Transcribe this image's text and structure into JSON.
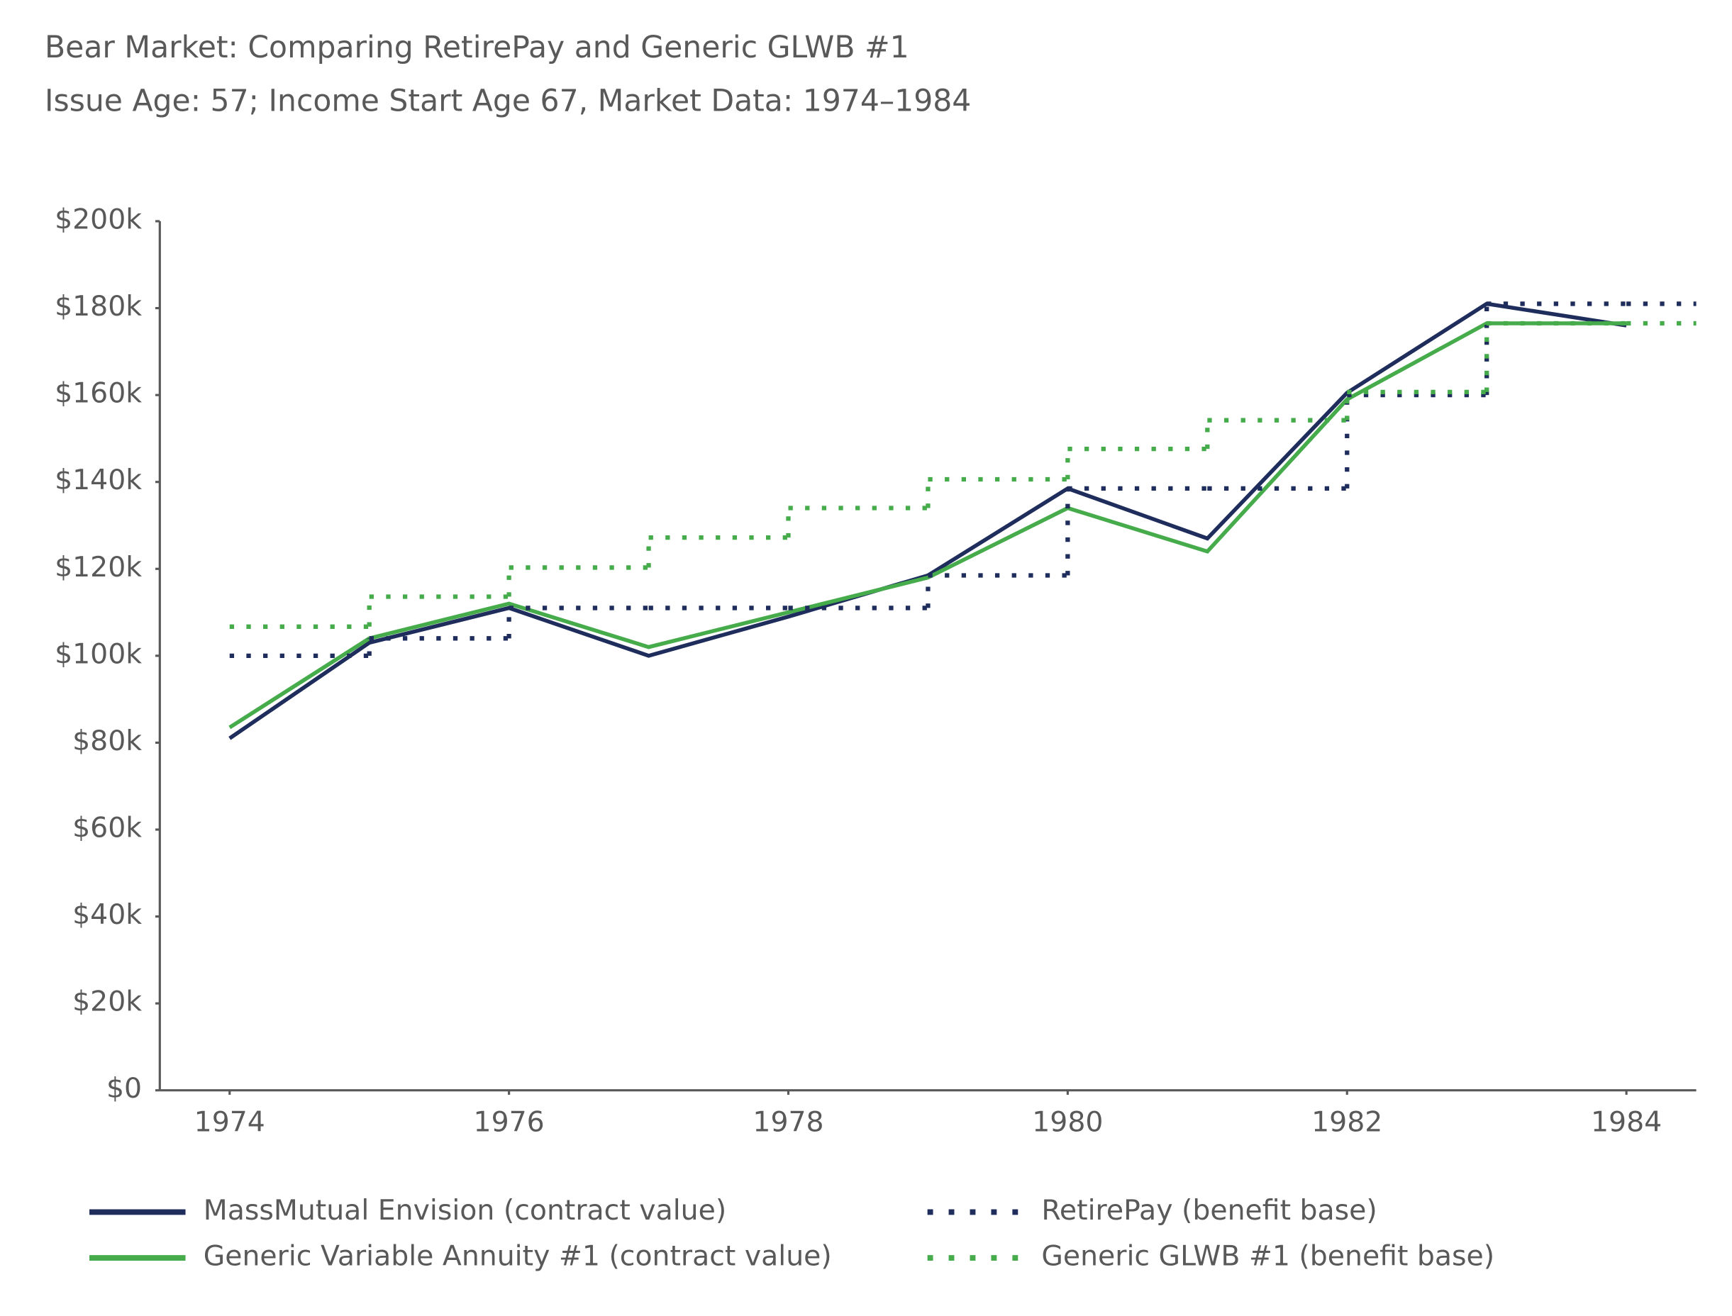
{
  "chart_data": {
    "type": "line",
    "title": "Bear Market: Comparing RetirePay and Generic GLWB #1",
    "subtitle": "Issue Age: 57; Income Start Age 67, Market Data: 1974–1984",
    "x": [
      1974,
      1975,
      1976,
      1977,
      1978,
      1979,
      1980,
      1981,
      1982,
      1983,
      1984
    ],
    "xlim": [
      1973.5,
      1984.5
    ],
    "xticks": [
      1974,
      1976,
      1978,
      1980,
      1982,
      1984
    ],
    "ylim": [
      0,
      200
    ],
    "yticks": [
      {
        "value": 0,
        "label": "$0"
      },
      {
        "value": 20,
        "label": "$20k"
      },
      {
        "value": 40,
        "label": "$40k"
      },
      {
        "value": 60,
        "label": "$60k"
      },
      {
        "value": 80,
        "label": "$80k"
      },
      {
        "value": 100,
        "label": "$100k"
      },
      {
        "value": 120,
        "label": "$120k"
      },
      {
        "value": 140,
        "label": "$140k"
      },
      {
        "value": 160,
        "label": "$160k"
      },
      {
        "value": 180,
        "label": "$180k"
      },
      {
        "value": 200,
        "label": "$200k"
      }
    ],
    "series": [
      {
        "name": "MassMutual Envision (contract value)",
        "color": "#1f2d5c",
        "step": false,
        "dotted": false,
        "values": [
          81,
          103,
          111,
          100,
          109,
          118.5,
          138.5,
          127,
          160.5,
          181,
          176
        ]
      },
      {
        "name": "Generic Variable Annuity #1 (contract value)",
        "color": "#46ac4b",
        "step": false,
        "dotted": false,
        "values": [
          83.5,
          104,
          112,
          102,
          110,
          118,
          134,
          124,
          159,
          176.5,
          176.5
        ]
      },
      {
        "name": "RetirePay (benefit base)",
        "color": "#1f2d5c",
        "step": true,
        "dotted": true,
        "values": [
          100,
          104,
          111,
          111,
          111,
          118.5,
          138.5,
          138.5,
          160,
          181,
          181
        ]
      },
      {
        "name": "Generic GLWB #1 (benefit base)",
        "color": "#46ac4b",
        "step": true,
        "dotted": true,
        "values": [
          106.7,
          113.6,
          120.3,
          127.2,
          134,
          140.6,
          147.6,
          154.2,
          160.7,
          176.5,
          176.5
        ]
      }
    ]
  }
}
